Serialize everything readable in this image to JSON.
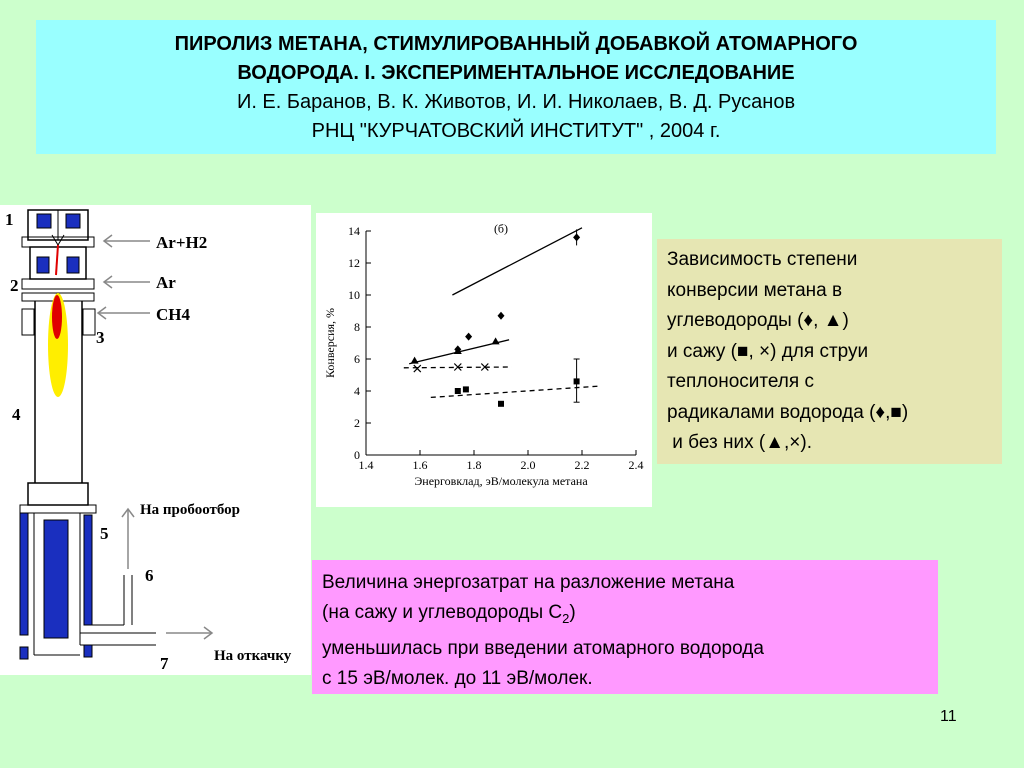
{
  "header": {
    "title_line1": "ПИРОЛИЗ МЕТАНА, СТИМУЛИРОВАННЫЙ ДОБАВКОЙ АТОМАРНОГО",
    "title_line2": "ВОДОРОДА. I. ЭКСПЕРИМЕНТАЛЬНОЕ ИССЛЕДОВАНИЕ",
    "authors": "И. Е. Баранов,  В. К. Животов, И. И. Николаев, В. Д. Русанов",
    "institute": "РНЦ \"КУРЧАТОВСКИЙ ИНСТИТУТ\" , 2004 г."
  },
  "diagram": {
    "labels": [
      "Ar+H2",
      "Ar",
      "CH4",
      "На пробоотбор",
      "На откачку"
    ],
    "numbers": [
      "1",
      "2",
      "3",
      "4",
      "5",
      "6",
      "7"
    ]
  },
  "description": {
    "lines": [
      "Зависимость степени",
      "конверсии метана в",
      "углеводороды (♦, ▲)",
      "и сажу (■, ×) для струи",
      "теплоносителя с",
      "радикалами водорода (♦,■)",
      " и без них (▲,×)."
    ]
  },
  "conclusion": {
    "line1": "Величина энергозатрат на разложение метана",
    "line2_prefix": "(на сажу и углеводороды С",
    "line2_sub": "2",
    "line2_suffix": ")",
    "line3": "уменьшилась при введении атомарного водорода",
    "line4": "с 15 эВ/молек. до 11 эВ/молек."
  },
  "page_number": "11",
  "chart_data": {
    "type": "scatter",
    "annotation": "(б)",
    "xlabel": "Энерговклад, эВ/молекула метана",
    "ylabel": "Конверсия, %",
    "xlim": [
      1.4,
      2.4
    ],
    "ylim": [
      0,
      14
    ],
    "xticks": [
      "1.4",
      "1.6",
      "1.8",
      "2.0",
      "2.2",
      "2.4"
    ],
    "yticks": [
      "0",
      "2",
      "4",
      "6",
      "8",
      "10",
      "12",
      "14"
    ],
    "series": [
      {
        "marker": "diamond",
        "x": [
          1.74,
          1.78,
          1.9,
          2.18
        ],
        "y": [
          6.6,
          7.4,
          8.7,
          13.6
        ],
        "fit": [
          [
            1.72,
            10.0
          ],
          [
            2.2,
            14.2
          ]
        ],
        "line": "solid"
      },
      {
        "marker": "triangle",
        "x": [
          1.58,
          1.74,
          1.88
        ],
        "y": [
          5.9,
          6.5,
          7.1
        ],
        "fit": [
          [
            1.56,
            5.7
          ],
          [
            1.93,
            7.2
          ]
        ],
        "line": "solid"
      },
      {
        "marker": "cross",
        "x": [
          1.59,
          1.74,
          1.84
        ],
        "y": [
          5.4,
          5.5,
          5.5
        ],
        "fit": [
          [
            1.54,
            5.45
          ],
          [
            1.94,
            5.5
          ]
        ],
        "line": "dashed"
      },
      {
        "marker": "square",
        "x": [
          1.74,
          1.77,
          1.9,
          2.18
        ],
        "y": [
          4.0,
          4.1,
          3.2,
          4.6
        ],
        "fit": [
          [
            1.64,
            3.6
          ],
          [
            2.26,
            4.3
          ]
        ],
        "line": "dashed"
      }
    ]
  }
}
